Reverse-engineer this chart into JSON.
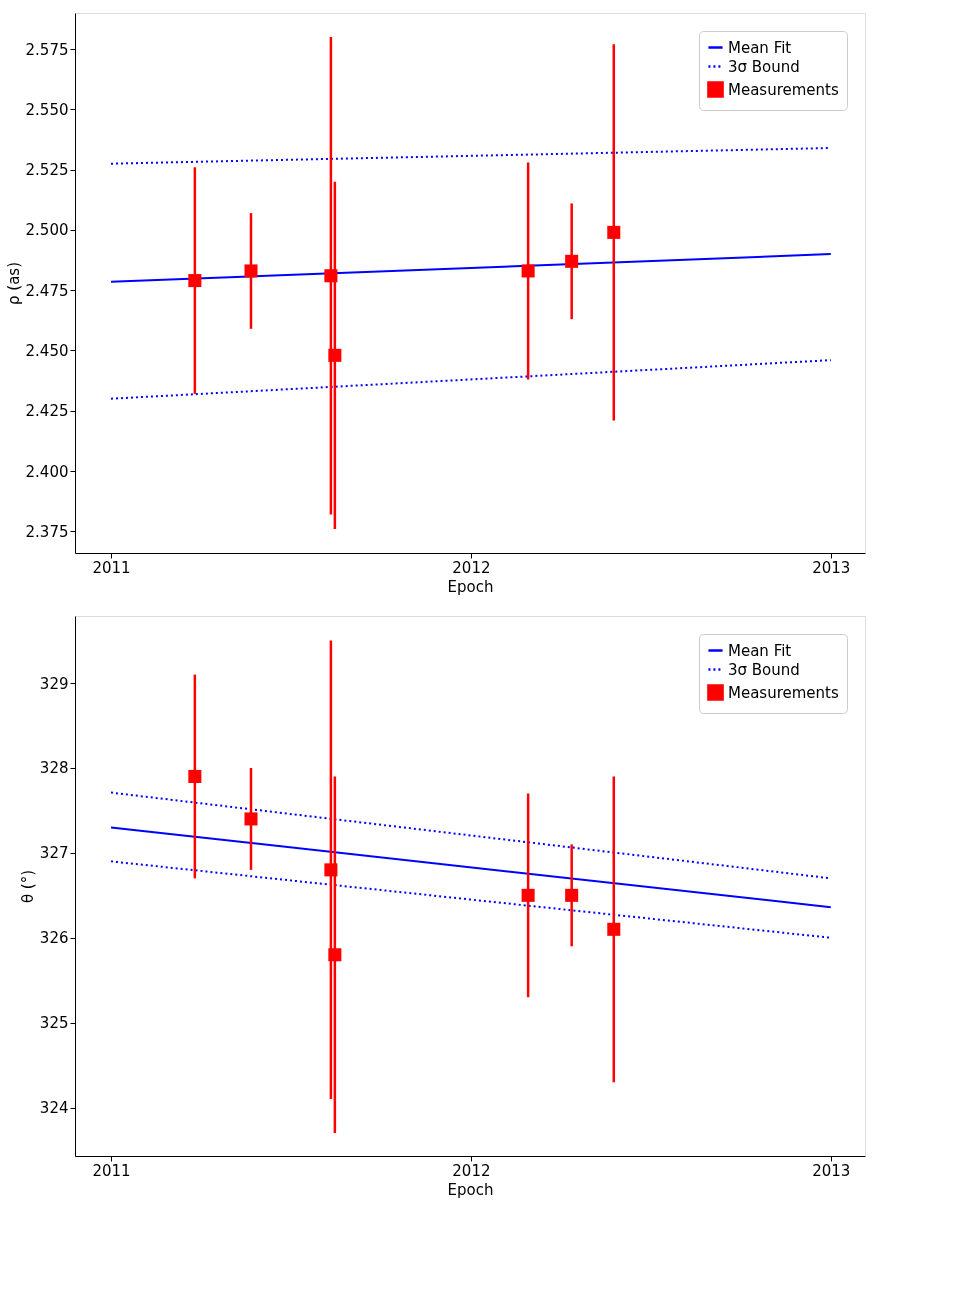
{
  "chart_data": [
    {
      "type": "scatter",
      "xlabel": "Epoch",
      "ylabel": "ρ (as)",
      "xlim": [
        2010.9,
        2013.095
      ],
      "xticks": [
        2011,
        2012,
        2013
      ],
      "ylim": [
        2.366,
        2.59
      ],
      "yticks": [
        {
          "value": 2.375,
          "label": "2.375"
        },
        {
          "value": 2.4,
          "label": "2.400"
        },
        {
          "value": 2.425,
          "label": "2.425"
        },
        {
          "value": 2.45,
          "label": "2.450"
        },
        {
          "value": 2.475,
          "label": "2.475"
        },
        {
          "value": 2.5,
          "label": "2.500"
        },
        {
          "value": 2.525,
          "label": "2.525"
        },
        {
          "value": 2.55,
          "label": "2.550"
        },
        {
          "value": 2.575,
          "label": "2.575"
        }
      ],
      "grid": false,
      "legend": "top right",
      "series": [
        {
          "name": "Mean Fit",
          "type": "line",
          "line_style": "solid",
          "color": "#0000ff",
          "x": [
            2011,
            2013
          ],
          "values": [
            2.4785,
            2.49
          ]
        },
        {
          "name": "3σ Bound",
          "type": "line",
          "line_style": "dotted",
          "color": "#0000ff",
          "x": [
            2011,
            2013
          ],
          "values": [
            2.5275,
            2.534
          ]
        },
        {
          "name": null,
          "type": "line",
          "line_style": "dotted",
          "color": "#0000ff",
          "x": [
            2011,
            2013
          ],
          "values": [
            2.43,
            2.446
          ]
        },
        {
          "name": "Measurements",
          "type": "scatter",
          "marker": "square",
          "color": "#ff0000",
          "x": [
            2011.233,
            2011.389,
            2011.611,
            2011.622,
            2012.159,
            2012.28,
            2012.397
          ],
          "values": [
            2.479,
            2.483,
            2.481,
            2.448,
            2.483,
            2.487,
            2.499
          ],
          "errors": [
            0.047,
            0.024,
            0.099,
            0.072,
            0.045,
            0.024,
            0.078
          ]
        }
      ]
    },
    {
      "type": "scatter",
      "xlabel": "Epoch",
      "ylabel": "θ (°)",
      "xlim": [
        2010.9,
        2013.095
      ],
      "xticks": [
        2011,
        2012,
        2013
      ],
      "ylim": [
        323.43,
        329.79
      ],
      "yticks": [
        324,
        325,
        326,
        327,
        328,
        329
      ],
      "grid": false,
      "legend": "top right",
      "series": [
        {
          "name": "Mean Fit",
          "type": "line",
          "line_style": "solid",
          "color": "#0000ff",
          "x": [
            2011,
            2013
          ],
          "values": [
            327.3,
            326.36
          ]
        },
        {
          "name": "3σ Bound",
          "type": "line",
          "line_style": "dotted",
          "color": "#0000ff",
          "x": [
            2011,
            2013
          ],
          "values": [
            327.71,
            326.7
          ]
        },
        {
          "name": null,
          "type": "line",
          "line_style": "dotted",
          "color": "#0000ff",
          "x": [
            2011,
            2013
          ],
          "values": [
            326.9,
            326.0
          ]
        },
        {
          "name": "Measurements",
          "type": "scatter",
          "marker": "square",
          "color": "#ff0000",
          "x": [
            2011.233,
            2011.389,
            2011.611,
            2011.622,
            2012.159,
            2012.28,
            2012.397
          ],
          "values": [
            327.9,
            327.4,
            326.8,
            325.8,
            326.5,
            326.5,
            326.1
          ],
          "errors": [
            1.2,
            0.6,
            2.7,
            2.1,
            1.2,
            0.6,
            1.8
          ]
        }
      ]
    }
  ]
}
